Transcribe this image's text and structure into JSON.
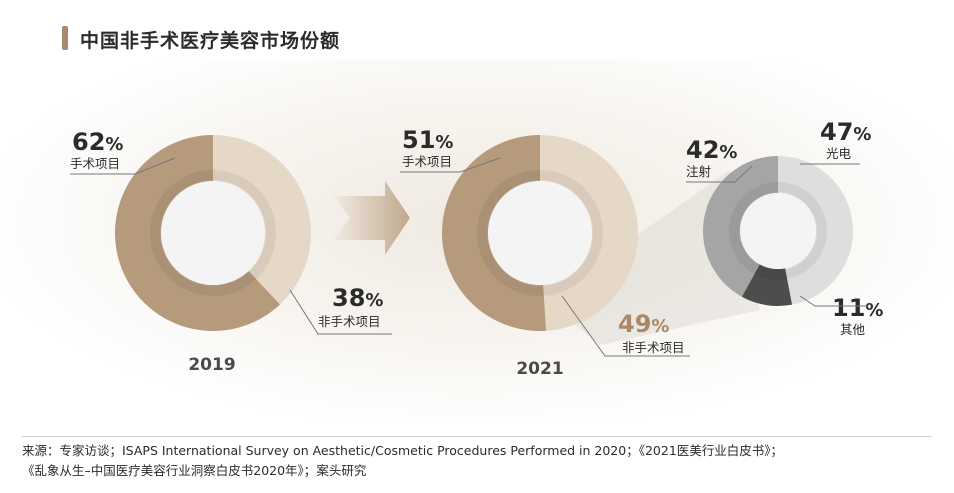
{
  "title": "中国非手术医疗美容市场份额",
  "source_line1": "来源：专家访谈；ISAPS International Survey on Aesthetic/Cosmetic Procedures Performed in 2020；《2021医美行业白皮书》；",
  "source_line2": "《乱象从生–中国医疗美容行业洞察白皮书2020年》；案头研究",
  "colors": {
    "surgical": "#b59a7c",
    "non_surgical": "#e6d8c7",
    "injection": "#a5a5a5",
    "photoelectric": "#dedede",
    "other": "#4d4d4d",
    "accent": "#a9896a"
  },
  "chart_data": [
    {
      "type": "pie",
      "donut": true,
      "title": "2019",
      "slices": [
        {
          "label": "手术项目",
          "value": 62,
          "value_label": "62%"
        },
        {
          "label": "非手术项目",
          "value": 38,
          "value_label": "38%"
        }
      ]
    },
    {
      "type": "pie",
      "donut": true,
      "title": "2021",
      "slices": [
        {
          "label": "手术项目",
          "value": 51,
          "value_label": "51%"
        },
        {
          "label": "非手术项目",
          "value": 49,
          "value_label": "49%"
        }
      ]
    },
    {
      "type": "pie",
      "donut": true,
      "title": "",
      "slices": [
        {
          "label": "注射",
          "value": 42,
          "value_label": "42%"
        },
        {
          "label": "光电",
          "value": 47,
          "value_label": "47%"
        },
        {
          "label": "其他",
          "value": 11,
          "value_label": "11%"
        }
      ]
    }
  ]
}
